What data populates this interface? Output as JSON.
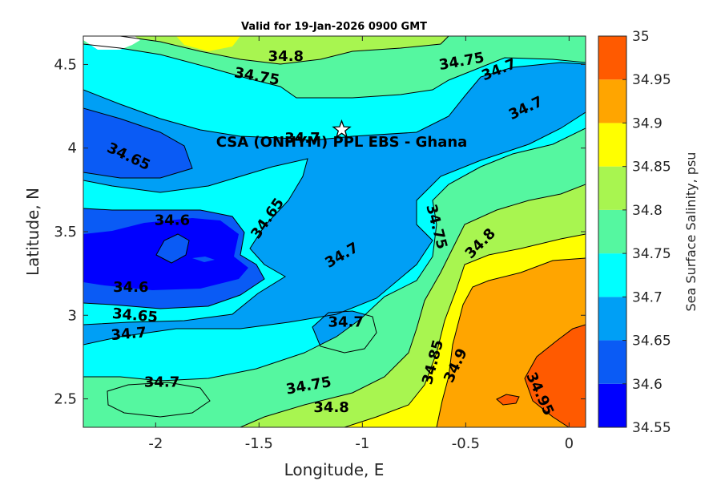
{
  "chart_data": {
    "type": "contour",
    "title": "Valid for 19-Jan-2026 0900 GMT",
    "xlabel": "Longitude, E",
    "ylabel": "Latitude, N",
    "xlim": [
      -2.35,
      0.08
    ],
    "ylim": [
      2.33,
      4.67
    ],
    "x_ticks": [
      -2,
      -1.5,
      -1,
      -0.5,
      0
    ],
    "x_tick_labels": [
      "-2",
      "-1.5",
      "-1",
      "-0.5",
      "0"
    ],
    "y_ticks": [
      2.5,
      3,
      3.5,
      4,
      4.5
    ],
    "y_tick_labels": [
      "2.5",
      "3",
      "3.5",
      "4",
      "4.5"
    ],
    "colorbar": {
      "label": "Sea Surface Salinity, psu",
      "levels": [
        34.55,
        34.6,
        34.65,
        34.7,
        34.75,
        34.8,
        34.85,
        34.9,
        34.95,
        35
      ],
      "tick_labels": [
        "34.55",
        "34.6",
        "34.65",
        "34.7",
        "34.75",
        "34.8",
        "34.85",
        "34.9",
        "34.95",
        "35"
      ],
      "colors": [
        "#0000ff",
        "#0a5bf5",
        "#009ff5",
        "#00ffff",
        "#55f7a0",
        "#a8f550",
        "#ffff00",
        "#ffa500",
        "#ff5a00"
      ]
    },
    "site": {
      "name": "CSA (ONHYM) PPL EBS  - Ghana",
      "lon": -1.1,
      "lat": 4.11,
      "marker": "star-icon"
    },
    "contour_labels": [
      {
        "text": "34.8",
        "lon": -1.37,
        "lat": 4.55,
        "angle": 0
      },
      {
        "text": "34.75",
        "lon": -1.51,
        "lat": 4.43,
        "angle": 10
      },
      {
        "text": "34.75",
        "lon": -0.52,
        "lat": 4.52,
        "angle": -10
      },
      {
        "text": "34.7",
        "lon": -0.34,
        "lat": 4.47,
        "angle": -22
      },
      {
        "text": "34.7",
        "lon": -0.21,
        "lat": 4.24,
        "angle": -25
      },
      {
        "text": "34.7",
        "lon": -1.29,
        "lat": 4.06,
        "angle": 0
      },
      {
        "text": "34.65",
        "lon": -2.13,
        "lat": 3.95,
        "angle": 25
      },
      {
        "text": "34.6",
        "lon": -1.92,
        "lat": 3.57,
        "angle": 0
      },
      {
        "text": "34.65",
        "lon": -1.46,
        "lat": 3.58,
        "angle": -55
      },
      {
        "text": "34.7",
        "lon": -1.1,
        "lat": 3.36,
        "angle": -30
      },
      {
        "text": "34.75",
        "lon": -0.64,
        "lat": 3.53,
        "angle": 75
      },
      {
        "text": "34.8",
        "lon": -0.43,
        "lat": 3.43,
        "angle": -45
      },
      {
        "text": "34.6",
        "lon": -2.12,
        "lat": 3.17,
        "angle": 0
      },
      {
        "text": "34.65",
        "lon": -2.1,
        "lat": 3.0,
        "angle": 5
      },
      {
        "text": "34.7",
        "lon": -2.13,
        "lat": 2.89,
        "angle": -5
      },
      {
        "text": "34.7",
        "lon": -1.08,
        "lat": 2.96,
        "angle": 0
      },
      {
        "text": "34.7",
        "lon": -1.97,
        "lat": 2.6,
        "angle": 0
      },
      {
        "text": "34.75",
        "lon": -1.26,
        "lat": 2.58,
        "angle": -10
      },
      {
        "text": "34.8",
        "lon": -1.15,
        "lat": 2.45,
        "angle": 0
      },
      {
        "text": "34.85",
        "lon": -0.66,
        "lat": 2.72,
        "angle": -75
      },
      {
        "text": "34.9",
        "lon": -0.55,
        "lat": 2.7,
        "angle": -65
      },
      {
        "text": "34.95",
        "lon": -0.14,
        "lat": 2.53,
        "angle": 65
      }
    ]
  }
}
